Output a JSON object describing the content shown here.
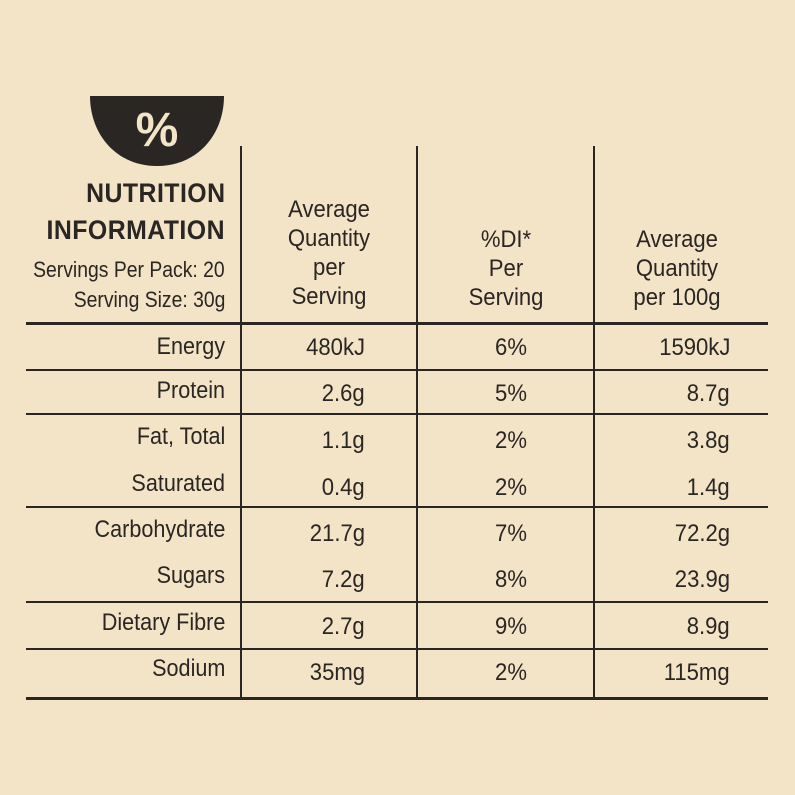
{
  "header": {
    "icon": "percent-bowl-icon",
    "icon_text": "%",
    "title_line1": "NUTRITION",
    "title_line2": "INFORMATION",
    "servings_per_pack": "Servings Per Pack: 20",
    "serving_size": "Serving Size: 30g"
  },
  "columns": [
    {
      "lines": [
        "Average",
        "Quantity",
        "per",
        "Serving"
      ]
    },
    {
      "lines": [
        "%DI*",
        "Per",
        "Serving"
      ]
    },
    {
      "lines": [
        "Average",
        "Quantity",
        "per 100g"
      ]
    }
  ],
  "rows": [
    {
      "label": "Energy",
      "per_serving": "480kJ",
      "di": "6%",
      "per_100g": "1590kJ"
    },
    {
      "label": "Protein",
      "per_serving": "2.6g",
      "di": "5%",
      "per_100g": "8.7g"
    },
    {
      "label": "Fat, Total",
      "per_serving": "1.1g",
      "di": "2%",
      "per_100g": "3.8g"
    },
    {
      "label": "Saturated",
      "per_serving": "0.4g",
      "di": "2%",
      "per_100g": "1.4g"
    },
    {
      "label": "Carbohydrate",
      "per_serving": "21.7g",
      "di": "7%",
      "per_100g": "72.2g"
    },
    {
      "label": "Sugars",
      "per_serving": "7.2g",
      "di": "8%",
      "per_100g": "23.9g"
    },
    {
      "label": "Dietary Fibre",
      "per_serving": "2.7g",
      "di": "9%",
      "per_100g": "8.9g"
    },
    {
      "label": "Sodium",
      "per_serving": "35mg",
      "di": "2%",
      "per_100g": "115mg"
    }
  ],
  "colors": {
    "background": "#f3e4c8",
    "ink": "#2a2623"
  }
}
